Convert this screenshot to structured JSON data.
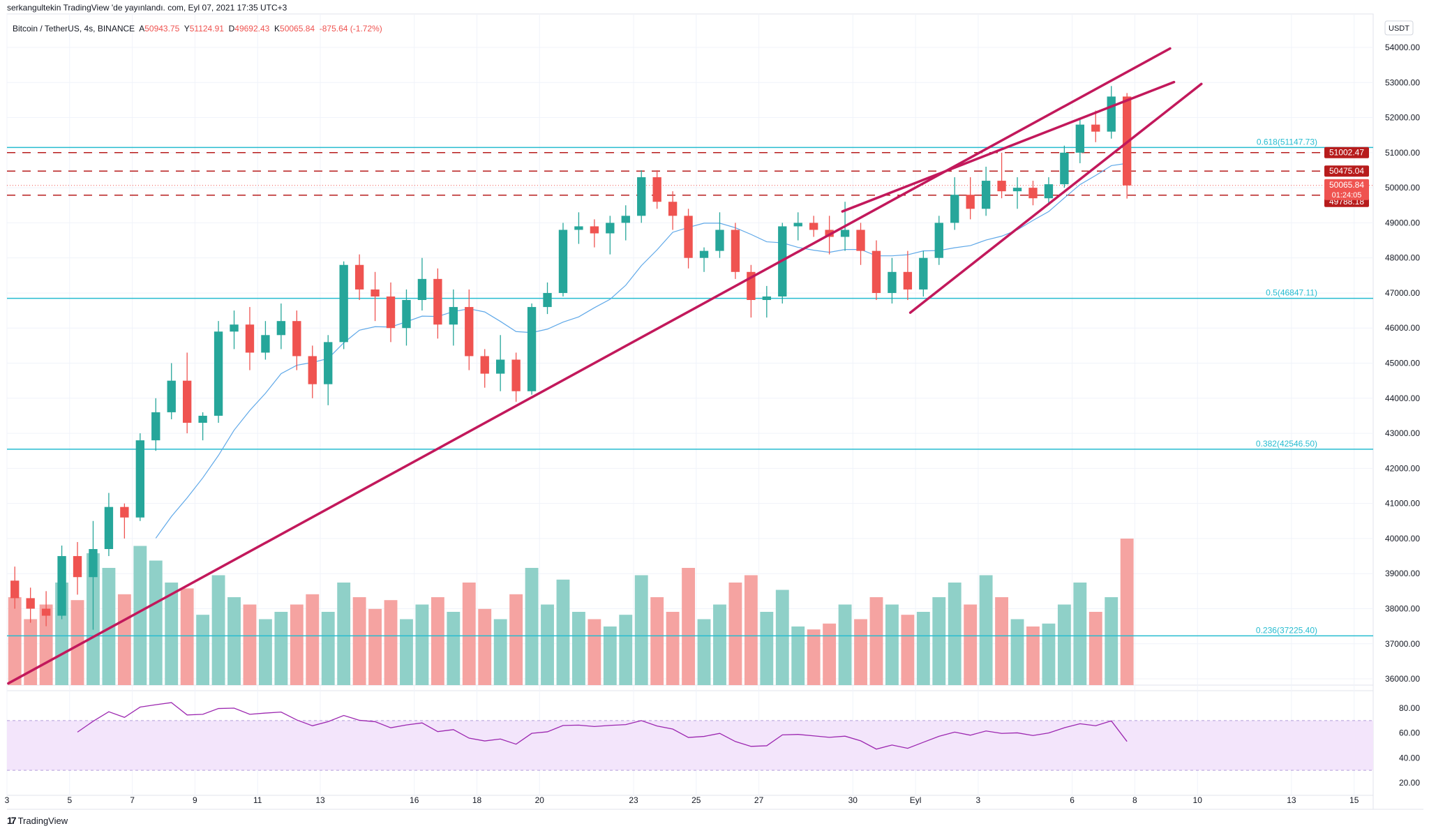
{
  "header": {
    "published": "serkangultekin TradingView 'de yayınlandı. com, Eyl 07, 2021 17:35 UTC+3",
    "symbol": "Bitcoin / TetherUS, 4s, BINANCE",
    "open_label": "A",
    "open": "50943.75",
    "high_label": "Y",
    "high": "51124.91",
    "low_label": "D",
    "low": "49692.43",
    "close_label": "K",
    "close": "50065.84",
    "change": "-875.64 (-1.72%)"
  },
  "footer": {
    "brand": "TradingView",
    "logo_glyph": "17"
  },
  "colors": {
    "up": "#26a69a",
    "down": "#ef5350",
    "up_volume": "#8fd0c8",
    "down_volume": "#f5a3a1",
    "fib": "#26bcd0",
    "level": "#b71c1c",
    "trendline": "#c2185b",
    "ma": "#5fa8e8",
    "rsi": "#9c27b0",
    "rsi_band": "#f3e5fb"
  },
  "chart_data": {
    "type": "candlestick",
    "currency": "USDT",
    "ylim": [
      35800,
      54700
    ],
    "price_ticks": [
      "36000.00",
      "37000.00",
      "38000.00",
      "39000.00",
      "40000.00",
      "41000.00",
      "42000.00",
      "43000.00",
      "44000.00",
      "45000.00",
      "46000.00",
      "47000.00",
      "48000.00",
      "49000.00",
      "50000.00",
      "51000.00",
      "52000.00",
      "53000.00",
      "54000.00"
    ],
    "time_ticks": [
      {
        "date": "2021-08-03",
        "label": "3"
      },
      {
        "date": "2021-08-05",
        "label": "5"
      },
      {
        "date": "2021-08-07",
        "label": "7"
      },
      {
        "date": "2021-08-09",
        "label": "9"
      },
      {
        "date": "2021-08-11",
        "label": "11"
      },
      {
        "date": "2021-08-13",
        "label": "13"
      },
      {
        "date": "2021-08-16",
        "label": "16"
      },
      {
        "date": "2021-08-18",
        "label": "18"
      },
      {
        "date": "2021-08-20",
        "label": "20"
      },
      {
        "date": "2021-08-23",
        "label": "23"
      },
      {
        "date": "2021-08-25",
        "label": "25"
      },
      {
        "date": "2021-08-27",
        "label": "27"
      },
      {
        "date": "2021-08-30",
        "label": "30"
      },
      {
        "date": "2021-09-01",
        "label": "Eyl"
      },
      {
        "date": "2021-09-03",
        "label": "3"
      },
      {
        "date": "2021-09-06",
        "label": "6"
      },
      {
        "date": "2021-09-08",
        "label": "8"
      },
      {
        "date": "2021-09-10",
        "label": "10"
      },
      {
        "date": "2021-09-13",
        "label": "13"
      },
      {
        "date": "2021-09-15",
        "label": "15"
      }
    ],
    "start": "2021-08-03T00:00",
    "candle_hours": 12,
    "ohlc": [
      [
        38800,
        39200,
        38000,
        38300
      ],
      [
        38300,
        38600,
        37600,
        38000
      ],
      [
        38000,
        38500,
        37500,
        37800
      ],
      [
        37800,
        39800,
        37700,
        39500
      ],
      [
        39500,
        39900,
        38400,
        38900
      ],
      [
        38900,
        40500,
        37400,
        39700
      ],
      [
        39700,
        41300,
        39500,
        40900
      ],
      [
        40900,
        41000,
        40000,
        40600
      ],
      [
        40600,
        43000,
        40500,
        42800
      ],
      [
        42800,
        44000,
        42500,
        43600
      ],
      [
        43600,
        45000,
        43400,
        44500
      ],
      [
        44500,
        45300,
        43000,
        43300
      ],
      [
        43300,
        43600,
        42800,
        43500
      ],
      [
        43500,
        46200,
        43300,
        45900
      ],
      [
        45900,
        46500,
        45400,
        46100
      ],
      [
        46100,
        46600,
        44800,
        45300
      ],
      [
        45300,
        46200,
        45100,
        45800
      ],
      [
        45800,
        46700,
        45400,
        46200
      ],
      [
        46200,
        46500,
        44800,
        45200
      ],
      [
        45200,
        45500,
        44000,
        44400
      ],
      [
        44400,
        45800,
        43800,
        45600
      ],
      [
        45600,
        47900,
        45400,
        47800
      ],
      [
        47800,
        48100,
        46800,
        47100
      ],
      [
        47100,
        47600,
        46200,
        46900
      ],
      [
        46900,
        47300,
        45600,
        46000
      ],
      [
        46000,
        47100,
        45500,
        46800
      ],
      [
        46800,
        48000,
        46500,
        47400
      ],
      [
        47400,
        47700,
        45700,
        46100
      ],
      [
        46100,
        47100,
        45500,
        46600
      ],
      [
        46600,
        47100,
        44800,
        45200
      ],
      [
        45200,
        45400,
        44300,
        44700
      ],
      [
        44700,
        45800,
        44200,
        45100
      ],
      [
        45100,
        45300,
        43900,
        44200
      ],
      [
        44200,
        46700,
        44100,
        46600
      ],
      [
        46600,
        47300,
        46400,
        47000
      ],
      [
        47000,
        49000,
        46900,
        48800
      ],
      [
        48800,
        49300,
        48400,
        48900
      ],
      [
        48900,
        49100,
        48300,
        48700
      ],
      [
        48700,
        49200,
        48100,
        49000
      ],
      [
        49000,
        49500,
        48500,
        49200
      ],
      [
        49200,
        50500,
        49000,
        50300
      ],
      [
        50300,
        50500,
        49400,
        49600
      ],
      [
        49600,
        49900,
        48800,
        49200
      ],
      [
        49200,
        49400,
        47700,
        48000
      ],
      [
        48000,
        48300,
        47600,
        48200
      ],
      [
        48200,
        49300,
        48000,
        48800
      ],
      [
        48800,
        49000,
        47400,
        47600
      ],
      [
        47600,
        47800,
        46300,
        46800
      ],
      [
        46800,
        47200,
        46300,
        46900
      ],
      [
        46900,
        49000,
        46700,
        48900
      ],
      [
        48900,
        49300,
        48500,
        49000
      ],
      [
        49000,
        49200,
        48600,
        48800
      ],
      [
        48800,
        49200,
        48100,
        48600
      ],
      [
        48600,
        49600,
        48200,
        48800
      ],
      [
        48800,
        49000,
        47800,
        48200
      ],
      [
        48200,
        48500,
        46800,
        47000
      ],
      [
        47000,
        48000,
        46700,
        47600
      ],
      [
        47600,
        48200,
        46800,
        47100
      ],
      [
        47100,
        48200,
        46900,
        48000
      ],
      [
        48000,
        49200,
        47800,
        49000
      ],
      [
        49000,
        50300,
        48800,
        49800
      ],
      [
        49800,
        50300,
        49100,
        49400
      ],
      [
        49400,
        50600,
        49200,
        50200
      ],
      [
        50200,
        51000,
        49700,
        49900
      ],
      [
        49900,
        50300,
        49400,
        50000
      ],
      [
        50000,
        50200,
        49500,
        49700
      ],
      [
        49700,
        50300,
        49500,
        50100
      ],
      [
        50100,
        51200,
        50000,
        51000
      ],
      [
        51000,
        52000,
        50700,
        51800
      ],
      [
        51800,
        52200,
        51300,
        51600
      ],
      [
        51600,
        52900,
        51400,
        52600
      ],
      [
        52600,
        52700,
        49692.43,
        50065.84
      ]
    ],
    "volume": [
      60,
      45,
      55,
      70,
      58,
      90,
      80,
      62,
      95,
      85,
      70,
      66,
      48,
      75,
      60,
      55,
      45,
      50,
      55,
      62,
      50,
      70,
      60,
      52,
      58,
      45,
      55,
      60,
      50,
      70,
      52,
      45,
      62,
      80,
      55,
      72,
      50,
      45,
      40,
      48,
      75,
      60,
      50,
      80,
      45,
      55,
      70,
      75,
      50,
      65,
      40,
      38,
      42,
      55,
      45,
      60,
      55,
      48,
      50,
      60,
      70,
      55,
      75,
      60,
      45,
      40,
      42,
      55,
      70,
      50,
      60,
      100
    ],
    "ma_period": 10,
    "rsi_period": 14,
    "rsi_ticks": [
      "20.00",
      "40.00",
      "60.00",
      "80.00"
    ],
    "rsi_band": [
      30,
      70
    ],
    "fib_levels": [
      {
        "price": 51147.73,
        "label": "0.618(51147.73)"
      },
      {
        "price": 46847.11,
        "label": "0.5(46847.11)"
      },
      {
        "price": 42546.5,
        "label": "0.382(42546.50)"
      },
      {
        "price": 37225.4,
        "label": "0.236(37225.40)"
      }
    ],
    "dashed_levels": [
      {
        "price": 51002.47,
        "label": "51002.47"
      },
      {
        "price": 50475.04,
        "label": "50475.04"
      },
      {
        "price": 49788.18,
        "label": "49788.18"
      }
    ],
    "last_price": {
      "price": 50065.84,
      "label": "50065.84",
      "countdown": "01:24:05"
    },
    "trendlines": [
      [
        [
          "2021-08-03T01:00",
          35870
        ],
        [
          "2021-09-09T03:00",
          53970
        ]
      ],
      [
        [
          "2021-08-29T16:00",
          49325
        ],
        [
          "2021-09-09T06:00",
          53013
        ]
      ],
      [
        [
          "2021-08-31T20:00",
          46440
        ],
        [
          "2021-09-10T03:00",
          52960
        ]
      ]
    ]
  }
}
